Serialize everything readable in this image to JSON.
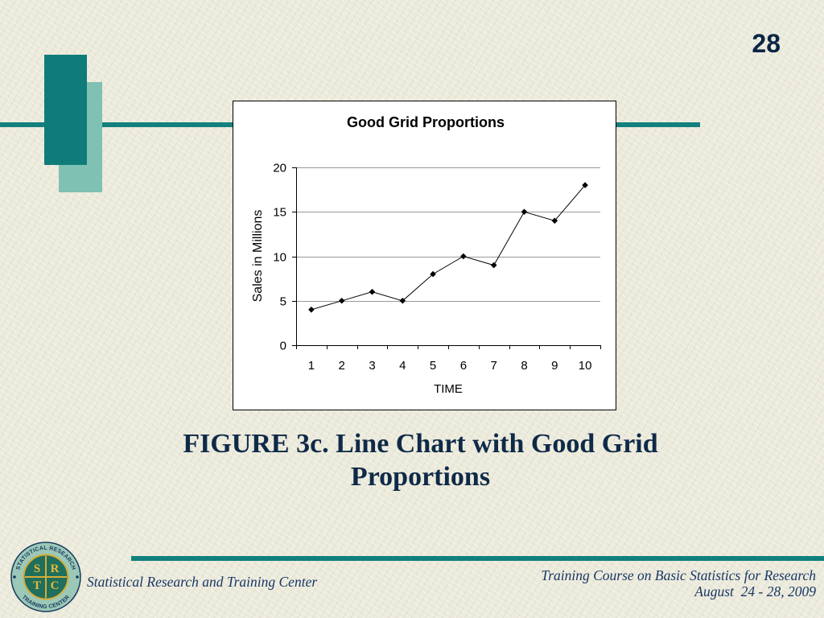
{
  "slide": {
    "page_number": "28"
  },
  "caption": {
    "lines": [
      "FIGURE 3c. Line Chart with Good Grid",
      "Proportions"
    ]
  },
  "footer": {
    "org_name": "Statistical Research and Training Center",
    "course_title": "Training Course on Basic Statistics for Research",
    "course_dates": "August  24 - 28, 2009"
  },
  "logo": {
    "ring_text_top": "STATISTICAL RESEARCH",
    "ring_text_bottom": "TRAINING CENTER",
    "letters": [
      "S",
      "R",
      "T",
      "C"
    ]
  },
  "colors": {
    "background": "#ebeadb",
    "accent_teal": "#12807e",
    "dark_teal_block": "#0f7c79",
    "light_teal_block": "#7fc1b3",
    "caption_text": "#0f2a48",
    "page_number_text": "#0b2546",
    "footer_text": "#1a3766"
  },
  "chart_data": {
    "type": "line",
    "title": "Good Grid Proportions",
    "xlabel": "TIME",
    "ylabel": "Sales in Millions",
    "categories": [
      "1",
      "2",
      "3",
      "4",
      "5",
      "6",
      "7",
      "8",
      "9",
      "10"
    ],
    "values": [
      4,
      5,
      6,
      5,
      8,
      10,
      9,
      15,
      14,
      18
    ],
    "ylim": [
      0,
      20
    ],
    "yticks": [
      0,
      5,
      10,
      15,
      20
    ],
    "grid": true,
    "legend": false,
    "marker": "diamond",
    "line_color": "#000000",
    "marker_color": "#000000",
    "grid_color": "#999999"
  }
}
